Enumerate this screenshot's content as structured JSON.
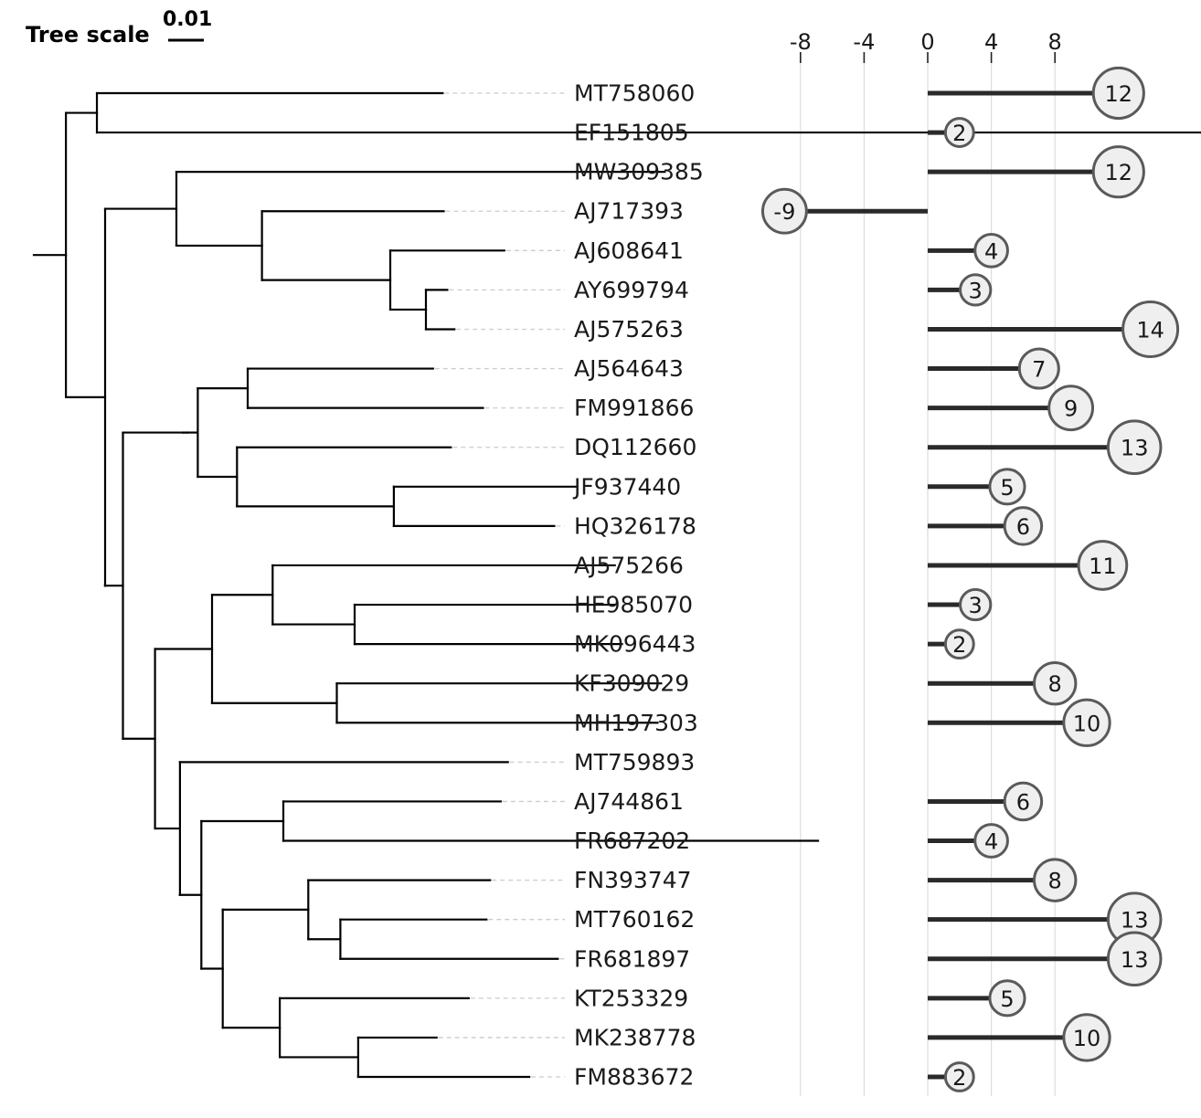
{
  "tree_scale": {
    "label": "Tree scale",
    "value": "0.01"
  },
  "chart_data": {
    "type": "lollipop",
    "title": "",
    "xlabel": "",
    "ylabel": "",
    "xlim": [
      -10,
      14
    ],
    "ticks": [
      -8,
      -4,
      0,
      4,
      8
    ],
    "tick_labels": [
      "-8",
      "-4",
      "0",
      "4",
      "8"
    ],
    "grid": true,
    "categories": [
      "MT758060",
      "EF151805",
      "MW309385",
      "AJ717393",
      "AJ608641",
      "AY699794",
      "AJ575263",
      "AJ564643",
      "FM991866",
      "DQ112660",
      "JF937440",
      "HQ326178",
      "AJ575266",
      "HE985070",
      "MK096443",
      "KF309029",
      "MH197303",
      "MT759893",
      "AJ744861",
      "FR687202",
      "FN393747",
      "MT760162",
      "FR681897",
      "KT253329",
      "MK238778",
      "FM883672"
    ],
    "values": [
      12,
      2,
      12,
      -9,
      4,
      3,
      14,
      7,
      9,
      13,
      5,
      6,
      11,
      3,
      2,
      8,
      10,
      null,
      6,
      4,
      8,
      13,
      13,
      5,
      10,
      2
    ],
    "value_labels": [
      "12",
      "2",
      "12",
      "-9",
      "4",
      "3",
      "14",
      "7",
      "9",
      "13",
      "5",
      "6",
      "11",
      "3",
      "2",
      "8",
      "10",
      "",
      "6",
      "4",
      "8",
      "13",
      "13",
      "5",
      "10",
      "2"
    ],
    "colors": {
      "stem": "#2a2a2a",
      "bubble_fill": "#efefef",
      "bubble_stroke": "#5a5a5a",
      "grid": "#dddddd",
      "branch": "#000000",
      "leader": "#cccccc"
    }
  },
  "tree": {
    "id": "root",
    "d": 0.009,
    "children": [
      {
        "id": "c1",
        "d": 0.0087,
        "children": [
          {
            "id": "MT758060",
            "d": 0.097
          },
          {
            "id": "EF151805",
            "d": 0.327
          }
        ]
      },
      {
        "id": "c2",
        "d": 0.011,
        "children": [
          {
            "id": "c3",
            "d": 0.02,
            "children": [
              {
                "id": "MW309385",
                "d": 0.137
              },
              {
                "id": "c4",
                "d": 0.024,
                "children": [
                  {
                    "id": "AJ717393",
                    "d": 0.051
                  },
                  {
                    "id": "c5",
                    "d": 0.036,
                    "children": [
                      {
                        "id": "AJ608641",
                        "d": 0.032
                      },
                      {
                        "id": "c6",
                        "d": 0.01,
                        "children": [
                          {
                            "id": "AY699794",
                            "d": 0.006
                          },
                          {
                            "id": "AJ575263",
                            "d": 0.008
                          }
                        ]
                      }
                    ]
                  }
                ]
              }
            ]
          },
          {
            "id": "c7",
            "d": 0.0,
            "children": [
              {
                "id": "c8",
                "d": 0.005,
                "children": [
                  {
                    "id": "c9",
                    "d": 0.017,
                    "children": [
                      {
                        "id": "c10",
                        "d": 0.001,
                        "children": [
                          {
                            "id": "c11",
                            "d": 0.003,
                            "children": [
                              {
                                "id": "c12",
                                "d": 0.014,
                                "children": [
                                  {
                                    "id": "AJ564643",
                                    "d": 0.052
                                  },
                                  {
                                    "id": "FM991866",
                                    "d": 0.066
                                  }
                                ]
                              },
                              {
                                "id": "c13",
                                "d": 0.011,
                                "children": [
                                  {
                                    "id": "DQ112660",
                                    "d": 0.06
                                  },
                                  {
                                    "id": "c14",
                                    "d": 0.044,
                                    "children": [
                                      {
                                        "id": "JF937440",
                                        "d": 0.051
                                      },
                                      {
                                        "id": "HQ326178",
                                        "d": 0.045
                                      }
                                    ]
                                  }
                                ]
                              }
                            ]
                          }
                        ]
                      }
                    ]
                  },
                  {
                    "id": "c15",
                    "d": 0.009,
                    "children": [
                      {
                        "id": "c16",
                        "d": 0.016,
                        "children": [
                          {
                            "id": "c17",
                            "d": 0.017,
                            "children": [
                              {
                                "id": "AJ575266",
                                "d": 0.096
                              },
                              {
                                "id": "c18",
                                "d": 0.023,
                                "children": [
                                  {
                                    "id": "HE985070",
                                    "d": 0.073
                                  },
                                  {
                                    "id": "MK096443",
                                    "d": 0.075
                                  }
                                ]
                              }
                            ]
                          },
                          {
                            "id": "c19",
                            "d": 0.035,
                            "children": [
                              {
                                "id": "KF309029",
                                "d": 0.091
                              },
                              {
                                "id": "MH197303",
                                "d": 0.09
                              }
                            ]
                          }
                        ]
                      },
                      {
                        "id": "c20",
                        "d": 0.007,
                        "children": [
                          {
                            "id": "MT759893",
                            "d": 0.092
                          },
                          {
                            "id": "c21",
                            "d": 0.0,
                            "children": [
                              {
                                "id": "c22",
                                "d": 0.006,
                                "children": [
                                  {
                                    "id": "c23",
                                    "d": 0.023,
                                    "children": [
                                      {
                                        "id": "AJ744861",
                                        "d": 0.061
                                      },
                                      {
                                        "id": "FR687202",
                                        "d": 0.15
                                      }
                                    ]
                                  },
                                  {
                                    "id": "c24",
                                    "d": 0.006,
                                    "children": [
                                      {
                                        "id": "c25",
                                        "d": 0.024,
                                        "children": [
                                          {
                                            "id": "FN393747",
                                            "d": 0.051
                                          },
                                          {
                                            "id": "c26",
                                            "d": 0.009,
                                            "children": [
                                              {
                                                "id": "MT760162",
                                                "d": 0.041
                                              },
                                              {
                                                "id": "FR681897",
                                                "d": 0.061
                                              }
                                            ]
                                          }
                                        ]
                                      },
                                      {
                                        "id": "c27",
                                        "d": 0.016,
                                        "children": [
                                          {
                                            "id": "KT253329",
                                            "d": 0.053
                                          },
                                          {
                                            "id": "c28",
                                            "d": 0.022,
                                            "children": [
                                              {
                                                "id": "MK238778",
                                                "d": 0.022
                                              },
                                              {
                                                "id": "FM883672",
                                                "d": 0.048
                                              }
                                            ]
                                          }
                                        ]
                                      }
                                    ]
                                  }
                                ]
                              }
                            ]
                          }
                        ]
                      }
                    ]
                  }
                ]
              }
            ]
          }
        ]
      }
    ]
  }
}
